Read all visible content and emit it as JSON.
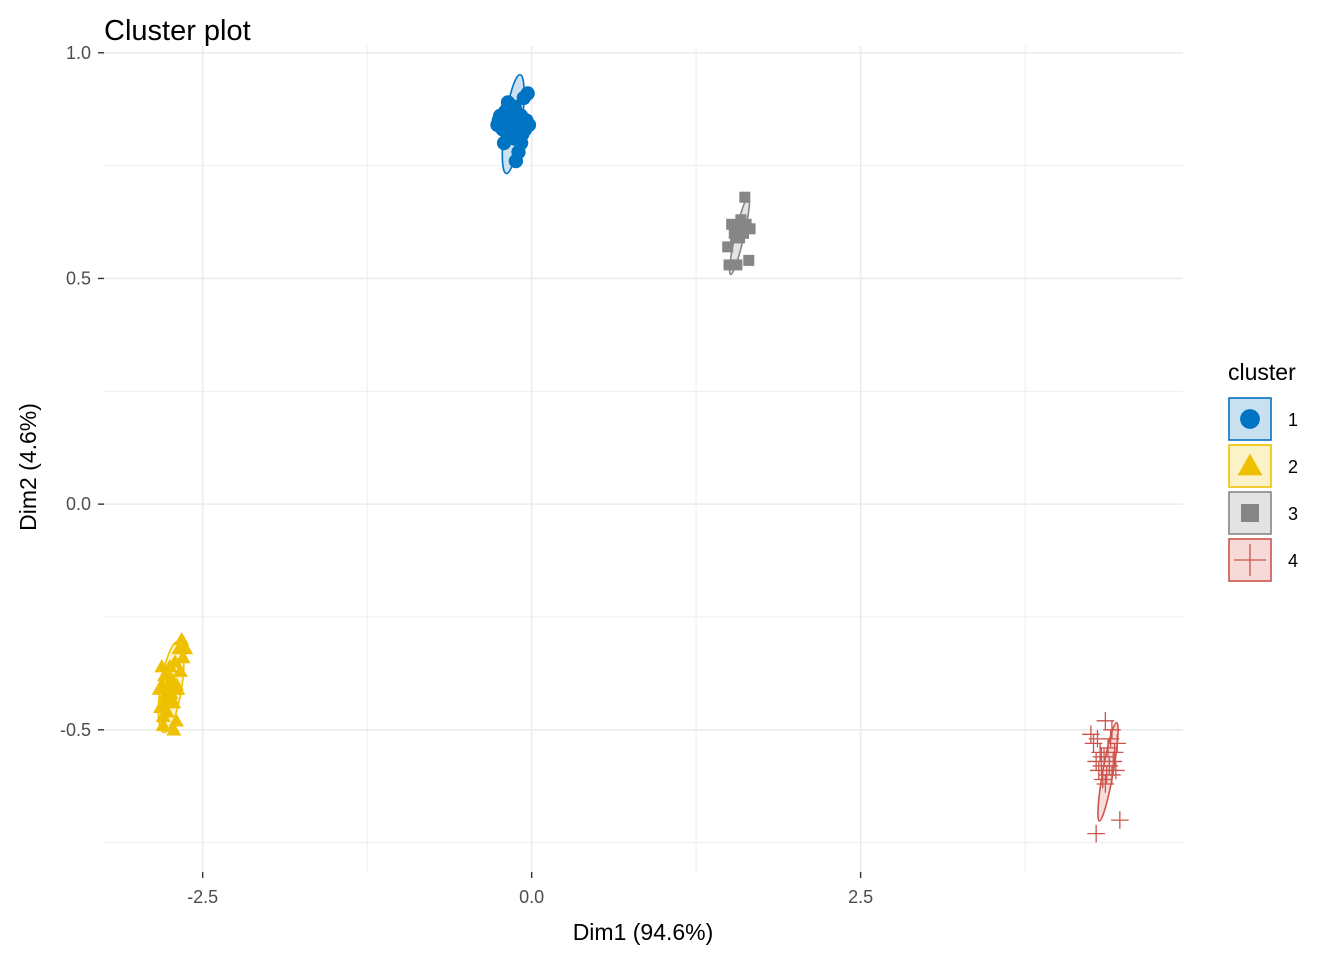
{
  "chart_data": {
    "type": "scatter",
    "title": "Cluster plot",
    "xlabel": "Dim1 (94.6%)",
    "ylabel": "Dim2 (4.6%)",
    "xlim": [
      -3.25,
      4.95
    ],
    "ylim": [
      -0.815,
      1.015
    ],
    "x_ticks": [
      -2.5,
      0.0,
      2.5
    ],
    "x_tick_labels": [
      "-2.5",
      "0.0",
      "2.5"
    ],
    "y_ticks": [
      -0.5,
      0.0,
      0.5,
      1.0
    ],
    "y_tick_labels": [
      "-0.5",
      "0.0",
      "0.5",
      "1.0"
    ],
    "grid": true,
    "legend": {
      "title": "cluster",
      "position": "right"
    },
    "series": [
      {
        "name": "1",
        "shape": "circle",
        "color": "#0073C2",
        "fill": "#C9E0F1",
        "ellipse": {
          "cx": -0.14,
          "cy": 0.842,
          "rx": 0.165,
          "ry": 0.086,
          "angle_deg": 82
        },
        "points": [
          [
            -0.26,
            0.84
          ],
          [
            -0.24,
            0.86
          ],
          [
            -0.22,
            0.83
          ],
          [
            -0.21,
            0.8
          ],
          [
            -0.2,
            0.87
          ],
          [
            -0.19,
            0.85
          ],
          [
            -0.18,
            0.89
          ],
          [
            -0.17,
            0.82
          ],
          [
            -0.16,
            0.84
          ],
          [
            -0.15,
            0.86
          ],
          [
            -0.14,
            0.83
          ],
          [
            -0.13,
            0.81
          ],
          [
            -0.12,
            0.87
          ],
          [
            -0.11,
            0.85
          ],
          [
            -0.1,
            0.78
          ],
          [
            -0.09,
            0.84
          ],
          [
            -0.08,
            0.86
          ],
          [
            -0.07,
            0.82
          ],
          [
            -0.06,
            0.9
          ],
          [
            -0.05,
            0.83
          ],
          [
            -0.04,
            0.85
          ],
          [
            -0.03,
            0.91
          ],
          [
            -0.12,
            0.76
          ],
          [
            -0.17,
            0.87
          ],
          [
            -0.13,
            0.88
          ],
          [
            -0.08,
            0.8
          ],
          [
            -0.02,
            0.84
          ],
          [
            -0.25,
            0.85
          ]
        ]
      },
      {
        "name": "2",
        "shape": "triangle",
        "color": "#EFC000",
        "fill": "#FCF2C7",
        "ellipse": {
          "cx": -2.74,
          "cy": -0.405,
          "rx": 0.152,
          "ry": 0.108,
          "angle_deg": 81
        },
        "points": [
          [
            -2.83,
            -0.41
          ],
          [
            -2.82,
            -0.45
          ],
          [
            -2.81,
            -0.4
          ],
          [
            -2.8,
            -0.49
          ],
          [
            -2.79,
            -0.38
          ],
          [
            -2.78,
            -0.43
          ],
          [
            -2.77,
            -0.46
          ],
          [
            -2.76,
            -0.4
          ],
          [
            -2.75,
            -0.36
          ],
          [
            -2.74,
            -0.42
          ],
          [
            -2.73,
            -0.39
          ],
          [
            -2.72,
            -0.44
          ],
          [
            -2.71,
            -0.35
          ],
          [
            -2.7,
            -0.48
          ],
          [
            -2.69,
            -0.41
          ],
          [
            -2.68,
            -0.32
          ],
          [
            -2.67,
            -0.37
          ],
          [
            -2.66,
            -0.3
          ],
          [
            -2.65,
            -0.34
          ],
          [
            -2.8,
            -0.47
          ],
          [
            -2.76,
            -0.38
          ],
          [
            -2.72,
            -0.5
          ],
          [
            -2.78,
            -0.42
          ],
          [
            -2.81,
            -0.36
          ],
          [
            -2.63,
            -0.32
          ],
          [
            -2.77,
            -0.44
          ],
          [
            -2.74,
            -0.43
          ],
          [
            -2.7,
            -0.4
          ]
        ]
      },
      {
        "name": "3",
        "shape": "square",
        "color": "#868686",
        "fill": "#E3E3E3",
        "ellipse": {
          "cx": 1.58,
          "cy": 0.595,
          "rx": 0.132,
          "ry": 0.045,
          "angle_deg": 77
        },
        "points": [
          [
            1.49,
            0.57
          ],
          [
            1.5,
            0.53
          ],
          [
            1.52,
            0.62
          ],
          [
            1.54,
            0.6
          ],
          [
            1.55,
            0.59
          ],
          [
            1.56,
            0.53
          ],
          [
            1.57,
            0.61
          ],
          [
            1.58,
            0.59
          ],
          [
            1.59,
            0.63
          ],
          [
            1.61,
            0.6
          ],
          [
            1.62,
            0.68
          ],
          [
            1.63,
            0.62
          ],
          [
            1.65,
            0.54
          ],
          [
            1.66,
            0.61
          ]
        ]
      },
      {
        "name": "4",
        "shape": "plus",
        "color": "#CD534C",
        "fill": "#F5DAD8",
        "ellipse": {
          "cx": 4.38,
          "cy": -0.593,
          "rx": 0.165,
          "ry": 0.053,
          "angle_deg": 80
        },
        "points": [
          [
            4.25,
            -0.51
          ],
          [
            4.27,
            -0.53
          ],
          [
            4.29,
            -0.57
          ],
          [
            4.3,
            -0.52
          ],
          [
            4.31,
            -0.59
          ],
          [
            4.32,
            -0.55
          ],
          [
            4.33,
            -0.58
          ],
          [
            4.34,
            -0.61
          ],
          [
            4.35,
            -0.56
          ],
          [
            4.36,
            -0.48
          ],
          [
            4.37,
            -0.6
          ],
          [
            4.38,
            -0.54
          ],
          [
            4.39,
            -0.58
          ],
          [
            4.4,
            -0.52
          ],
          [
            4.41,
            -0.6
          ],
          [
            4.42,
            -0.57
          ],
          [
            4.43,
            -0.55
          ],
          [
            4.44,
            -0.59
          ],
          [
            4.45,
            -0.53
          ],
          [
            4.47,
            -0.7
          ],
          [
            4.29,
            -0.73
          ],
          [
            4.36,
            -0.62
          ],
          [
            4.41,
            -0.5
          ],
          [
            4.33,
            -0.56
          ]
        ]
      }
    ]
  }
}
